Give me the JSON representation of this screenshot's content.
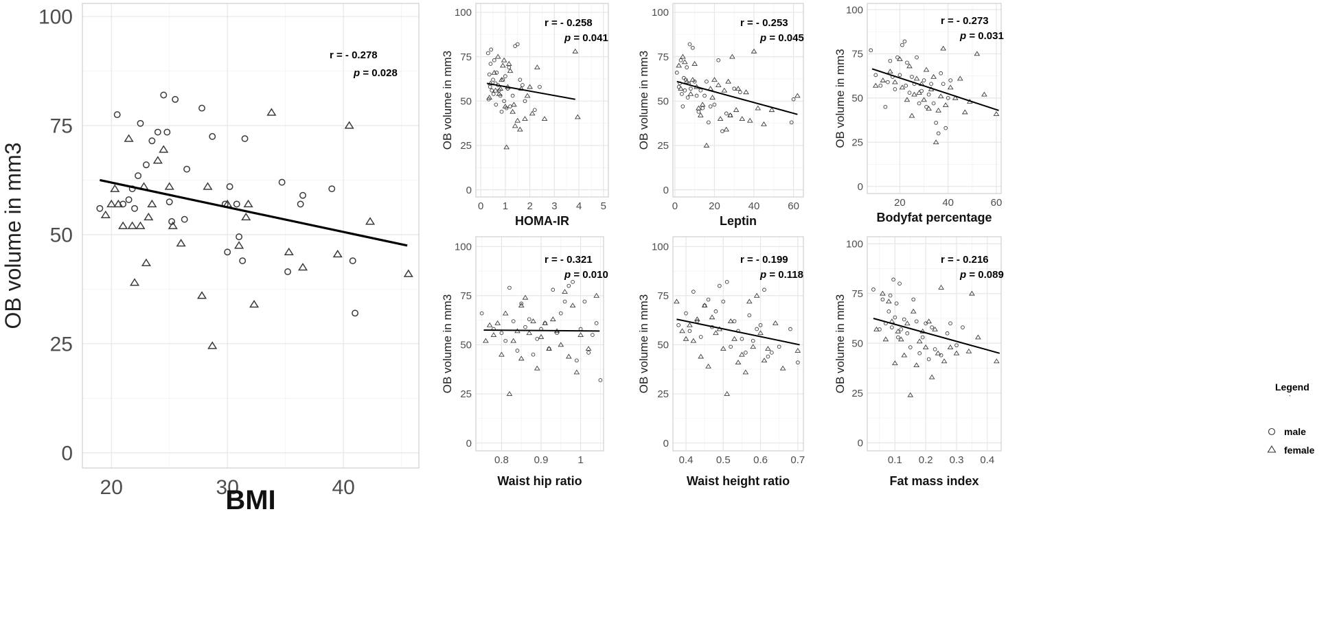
{
  "chart_data": [
    {
      "type": "scatter",
      "id": "bmi",
      "ylabel": "OB volume in mm3",
      "xlabel": "BMI",
      "xlim": [
        17.5,
        46.5
      ],
      "ylim": [
        -3.5,
        103
      ],
      "xticks": [
        20,
        30,
        40
      ],
      "yticks": [
        0,
        25,
        50,
        75,
        100
      ],
      "fit_line": {
        "x": [
          19,
          45.5
        ],
        "y": [
          62.5,
          47.5
        ]
      },
      "annotation": {
        "r": "r = - 0.278",
        "p_label": "p",
        "p_value": " = 0.028"
      },
      "male": {
        "x": [
          19.0,
          20.5,
          21.0,
          21.5,
          21.8,
          22.0,
          22.3,
          22.5,
          23.0,
          23.5,
          24.0,
          24.5,
          24.8,
          25.0,
          25.2,
          25.5,
          26.3,
          26.5,
          27.8,
          28.7,
          29.8,
          30.0,
          30.2,
          30.8,
          31.0,
          31.3,
          31.5,
          34.7,
          35.2,
          36.3,
          36.5,
          39.0,
          40.8,
          41.0
        ],
        "y": [
          56,
          77.5,
          57,
          58,
          60.5,
          56,
          63.5,
          75.5,
          66,
          71.5,
          73.5,
          82,
          73.5,
          57.5,
          53,
          81,
          53.5,
          65,
          79,
          72.5,
          57,
          46,
          61,
          57,
          49.5,
          44,
          72,
          62,
          41.5,
          57,
          59,
          60.5,
          44,
          32
        ]
      },
      "female": {
        "x": [
          19.5,
          20.0,
          20.3,
          20.6,
          21.0,
          21.5,
          21.8,
          22.0,
          22.5,
          22.8,
          23.0,
          23.2,
          23.5,
          24.0,
          24.5,
          25.0,
          25.3,
          26.0,
          27.8,
          28.3,
          28.7,
          30.0,
          31.0,
          31.6,
          31.8,
          32.3,
          33.8,
          35.3,
          36.5,
          39.5,
          40.5,
          42.3,
          45.6
        ],
        "y": [
          54.5,
          57,
          60.5,
          57,
          52,
          72,
          52,
          39,
          52,
          61,
          43.5,
          54,
          57,
          67,
          69.5,
          61,
          52,
          48,
          36,
          61,
          24.5,
          57,
          47.5,
          54,
          57,
          34,
          78,
          46,
          42.5,
          45.5,
          75,
          53,
          41
        ]
      }
    },
    {
      "type": "scatter",
      "id": "homa",
      "ylabel": "OB volume in mm3",
      "xlabel": "HOMA-IR",
      "xlim": [
        -0.2,
        5.2
      ],
      "ylim": [
        -4,
        105
      ],
      "xticks": [
        0,
        1,
        2,
        3,
        4,
        5
      ],
      "yticks": [
        0,
        25,
        50,
        75,
        100
      ],
      "fit_line": {
        "x": [
          0.25,
          3.85
        ],
        "y": [
          60,
          51
        ]
      },
      "annotation": {
        "r": "r = - 0.258",
        "p_label": "p",
        "p_value": " = 0.041"
      },
      "male": {
        "x": [
          0.3,
          0.32,
          0.35,
          0.38,
          0.4,
          0.42,
          0.45,
          0.5,
          0.52,
          0.55,
          0.6,
          0.62,
          0.65,
          0.7,
          0.75,
          0.8,
          0.85,
          0.9,
          0.95,
          1.0,
          1.05,
          1.1,
          1.15,
          1.2,
          1.3,
          1.4,
          1.5,
          1.6,
          1.7,
          1.8,
          2.2,
          2.4
        ],
        "y": [
          77,
          51,
          65,
          58,
          71,
          79,
          56,
          62,
          54,
          73,
          60,
          48,
          66,
          59,
          56,
          53,
          44,
          62,
          50,
          64,
          46,
          57,
          69,
          47,
          53,
          81,
          82,
          62,
          59,
          50,
          45,
          58
        ]
      },
      "female": {
        "x": [
          0.35,
          0.4,
          0.55,
          0.6,
          0.7,
          0.75,
          0.8,
          0.85,
          0.9,
          0.95,
          1.0,
          1.05,
          1.1,
          1.15,
          1.2,
          1.3,
          1.35,
          1.4,
          1.5,
          1.6,
          1.65,
          1.8,
          1.9,
          2.0,
          2.1,
          2.3,
          2.6,
          3.85,
          3.95
        ],
        "y": [
          52,
          60,
          66,
          56,
          75,
          54,
          57,
          62,
          70,
          73,
          47,
          24,
          58,
          71,
          67,
          44,
          48,
          36,
          39,
          34,
          57,
          40,
          53,
          58,
          43,
          69,
          40,
          78,
          41
        ]
      }
    },
    {
      "type": "scatter",
      "id": "leptin",
      "ylabel": "OB volume in mm3",
      "xlabel": "Leptin",
      "xlim": [
        -1,
        65
      ],
      "ylim": [
        -4,
        105
      ],
      "xticks": [
        0,
        20,
        40,
        60
      ],
      "yticks": [
        0,
        25,
        50,
        75,
        100
      ],
      "fit_line": {
        "x": [
          1,
          62
        ],
        "y": [
          61,
          42.5
        ]
      },
      "annotation": {
        "r": "r = - 0.253",
        "p_label": "p",
        "p_value": " = 0.045"
      },
      "male": {
        "x": [
          1,
          2,
          2.5,
          3,
          3.5,
          4,
          4.5,
          5,
          5.5,
          6,
          6.5,
          7,
          7.5,
          8,
          9,
          10,
          11,
          12,
          13,
          14,
          15,
          16,
          17,
          18,
          20,
          22,
          24,
          26,
          28,
          30,
          33,
          59,
          60
        ],
        "y": [
          66,
          58,
          60,
          73,
          54,
          47,
          63,
          56,
          62,
          69,
          52,
          60,
          82,
          57,
          80,
          61,
          53,
          44,
          56,
          46,
          53,
          61,
          38,
          47,
          48,
          73,
          33,
          43,
          42,
          57,
          55,
          38,
          51
        ]
      },
      "female": {
        "x": [
          2,
          3,
          4,
          5,
          6,
          8,
          9,
          10,
          11,
          12,
          13,
          14,
          16,
          18,
          19,
          20,
          22,
          23,
          25,
          26,
          27,
          28,
          29,
          31,
          32,
          34,
          36,
          38,
          40,
          42,
          45,
          49,
          62
        ],
        "y": [
          70,
          57,
          75,
          72,
          61,
          54,
          62,
          71,
          58,
          46,
          42,
          48,
          25,
          57,
          52,
          62,
          59,
          40,
          56,
          34,
          61,
          42,
          75,
          45,
          57,
          40,
          55,
          39,
          78,
          46,
          37,
          45,
          53
        ]
      }
    },
    {
      "type": "scatter",
      "id": "bodyfat",
      "ylabel": "OB volume in mm3",
      "xlabel": "Bodyfat percentage",
      "xlim": [
        6.5,
        62
      ],
      "ylim": [
        -4,
        103.5
      ],
      "xticks": [
        20,
        40,
        60
      ],
      "yticks": [
        0,
        25,
        50,
        75,
        100
      ],
      "fit_line": {
        "x": [
          8.5,
          61
        ],
        "y": [
          66.5,
          43
        ]
      },
      "annotation": {
        "r": "r = - 0.273",
        "p_label": "p",
        "p_value": " = 0.031"
      },
      "male": {
        "x": [
          8,
          10,
          12,
          14,
          15,
          16,
          17,
          18,
          19,
          20,
          21,
          22,
          22.5,
          23,
          24,
          25,
          26,
          27,
          28,
          29,
          30,
          31,
          32,
          33,
          34,
          35,
          36,
          37,
          38,
          39,
          40,
          41
        ],
        "y": [
          77,
          63,
          57,
          45,
          59,
          71,
          62,
          55,
          73,
          63,
          80,
          82,
          57,
          70,
          53,
          62,
          58,
          73,
          47,
          54,
          60,
          45,
          52,
          58,
          47,
          36,
          30,
          64,
          58,
          33,
          50,
          60
        ]
      },
      "female": {
        "x": [
          10,
          13,
          16,
          18,
          20,
          21,
          23,
          24,
          25,
          26,
          27,
          28,
          29,
          30,
          31,
          32,
          33,
          34,
          35,
          36,
          37,
          38,
          39,
          41,
          43,
          45,
          47,
          49,
          52,
          55,
          60
        ],
        "y": [
          57,
          60,
          65,
          59,
          72,
          56,
          49,
          68,
          40,
          52,
          61,
          53,
          58,
          49,
          66,
          44,
          55,
          62,
          25,
          43,
          51,
          78,
          46,
          56,
          50,
          61,
          42,
          48,
          75,
          52,
          41
        ]
      }
    },
    {
      "type": "scatter",
      "id": "whr",
      "ylabel": "OB volume in mm3",
      "xlabel": "Waist hip ratio",
      "xlim": [
        0.735,
        1.058
      ],
      "ylim": [
        -4,
        105
      ],
      "xticks": [
        0.8,
        0.9,
        1.0
      ],
      "yticks": [
        0,
        25,
        50,
        75,
        100
      ],
      "fit_line": {
        "x": [
          0.755,
          1.048
        ],
        "y": [
          57.5,
          57
        ]
      },
      "annotation": {
        "r": "r = - 0.321",
        "p_label": "p",
        "p_value": " = 0.010"
      },
      "male": {
        "x": [
          0.75,
          0.78,
          0.8,
          0.81,
          0.82,
          0.83,
          0.84,
          0.85,
          0.86,
          0.87,
          0.88,
          0.89,
          0.9,
          0.91,
          0.92,
          0.93,
          0.94,
          0.95,
          0.96,
          0.97,
          0.98,
          0.99,
          1.0,
          1.01,
          1.02,
          1.03,
          1.04,
          1.05
        ],
        "y": [
          66,
          58,
          56,
          52,
          79,
          62,
          47,
          71,
          59,
          63,
          45,
          53,
          58,
          61,
          48,
          78,
          56,
          66,
          72,
          80,
          82,
          42,
          58,
          72,
          46,
          55,
          61,
          32
        ]
      },
      "female": {
        "x": [
          0.76,
          0.77,
          0.78,
          0.79,
          0.8,
          0.81,
          0.82,
          0.83,
          0.84,
          0.85,
          0.85,
          0.86,
          0.87,
          0.88,
          0.89,
          0.9,
          0.91,
          0.92,
          0.93,
          0.94,
          0.95,
          0.96,
          0.97,
          0.98,
          0.99,
          1.0,
          1.02,
          1.04
        ],
        "y": [
          52,
          60,
          55,
          61,
          45,
          66,
          25,
          52,
          57,
          70,
          43,
          74,
          56,
          62,
          38,
          54,
          61,
          48,
          63,
          57,
          50,
          77,
          44,
          70,
          36,
          55,
          48,
          75
        ]
      }
    },
    {
      "type": "scatter",
      "id": "whtr",
      "ylabel": "OB volume in mm3",
      "xlabel": "Waist height ratio",
      "xlim": [
        0.365,
        0.715
      ],
      "ylim": [
        -4,
        105
      ],
      "xticks": [
        0.4,
        0.5,
        0.6,
        0.7
      ],
      "yticks": [
        0,
        25,
        50,
        75,
        100
      ],
      "fit_line": {
        "x": [
          0.375,
          0.705
        ],
        "y": [
          63,
          50
        ]
      },
      "annotation": {
        "r": "r = - 0.199",
        "p_label": "p",
        "p_value": " = 0.118"
      },
      "male": {
        "x": [
          0.38,
          0.4,
          0.41,
          0.42,
          0.43,
          0.44,
          0.45,
          0.46,
          0.47,
          0.48,
          0.49,
          0.5,
          0.51,
          0.52,
          0.53,
          0.54,
          0.55,
          0.56,
          0.57,
          0.58,
          0.59,
          0.6,
          0.61,
          0.62,
          0.63,
          0.65,
          0.68,
          0.7
        ],
        "y": [
          60,
          66,
          57,
          77,
          62,
          54,
          70,
          73,
          59,
          67,
          80,
          72,
          82,
          49,
          62,
          57,
          53,
          46,
          65,
          52,
          58,
          60,
          78,
          44,
          46,
          49,
          58,
          41
        ]
      },
      "female": {
        "x": [
          0.375,
          0.39,
          0.4,
          0.41,
          0.42,
          0.43,
          0.44,
          0.45,
          0.46,
          0.47,
          0.48,
          0.49,
          0.5,
          0.51,
          0.52,
          0.53,
          0.54,
          0.55,
          0.56,
          0.57,
          0.58,
          0.59,
          0.6,
          0.61,
          0.62,
          0.64,
          0.66,
          0.7
        ],
        "y": [
          72,
          57,
          53,
          60,
          52,
          63,
          44,
          70,
          39,
          64,
          56,
          58,
          48,
          25,
          62,
          53,
          41,
          45,
          36,
          72,
          49,
          75,
          56,
          42,
          48,
          61,
          38,
          47
        ]
      }
    },
    {
      "type": "scatter",
      "id": "fmi",
      "ylabel": "OB volume in mm3",
      "xlabel": "Fat mass index",
      "xlim": [
        0.01,
        0.445
      ],
      "ylim": [
        -4,
        103.5
      ],
      "xticks": [
        0.1,
        0.2,
        0.3,
        0.4
      ],
      "yticks": [
        0,
        25,
        50,
        75,
        100
      ],
      "fit_line": {
        "x": [
          0.03,
          0.44
        ],
        "y": [
          62.5,
          45
        ]
      },
      "annotation": {
        "r": "r = - 0.216",
        "p_label": "p",
        "p_value": " = 0.089"
      },
      "male": {
        "x": [
          0.03,
          0.05,
          0.06,
          0.07,
          0.08,
          0.085,
          0.09,
          0.095,
          0.1,
          0.105,
          0.11,
          0.115,
          0.12,
          0.13,
          0.14,
          0.15,
          0.16,
          0.17,
          0.18,
          0.19,
          0.2,
          0.21,
          0.22,
          0.23,
          0.25,
          0.27,
          0.28,
          0.3,
          0.32
        ],
        "y": [
          77,
          57,
          72,
          60,
          66,
          74,
          58,
          82,
          63,
          70,
          53,
          80,
          57,
          62,
          55,
          48,
          72,
          61,
          45,
          53,
          60,
          42,
          58,
          47,
          44,
          55,
          60,
          49,
          58
        ]
      },
      "female": {
        "x": [
          0.04,
          0.06,
          0.07,
          0.08,
          0.09,
          0.1,
          0.11,
          0.12,
          0.13,
          0.14,
          0.15,
          0.16,
          0.17,
          0.18,
          0.19,
          0.2,
          0.21,
          0.22,
          0.23,
          0.24,
          0.25,
          0.26,
          0.28,
          0.3,
          0.34,
          0.35,
          0.37,
          0.43
        ],
        "y": [
          57,
          75,
          52,
          71,
          61,
          40,
          56,
          52,
          44,
          60,
          24,
          66,
          39,
          51,
          56,
          48,
          61,
          33,
          57,
          45,
          78,
          41,
          48,
          45,
          46,
          75,
          53,
          41
        ]
      }
    }
  ],
  "legend": {
    "title": "Legend",
    "mark": "`",
    "male": "male",
    "female": "female"
  }
}
